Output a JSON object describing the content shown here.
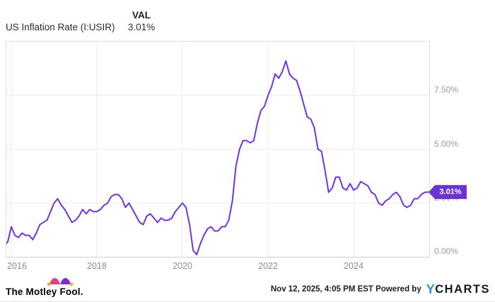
{
  "header": {
    "series_label": "US Inflation Rate (I:USIR)",
    "val_header": "VAL",
    "val_value": "3.01%"
  },
  "chart_data": {
    "type": "line",
    "title": "US Inflation Rate (I:USIR)",
    "series_name": "US Inflation Rate",
    "unit": "%",
    "frequency": "monthly",
    "x_start": "2015-11",
    "x_end": "2025-10",
    "x_tick_labels": [
      "2016",
      "2018",
      "2020",
      "2022",
      "2024"
    ],
    "y_ticks": [
      0,
      2.5,
      5,
      7.5
    ],
    "y_tick_labels": [
      "0.00%",
      "2.50%",
      "5.00%",
      "7.50%"
    ],
    "ylim": [
      0,
      10
    ],
    "grid": true,
    "legend_position": "none",
    "last_value_label": "3.01%",
    "values": [
      0.5,
      0.7,
      1.4,
      1.0,
      0.9,
      1.1,
      1.0,
      1.0,
      0.8,
      1.1,
      1.5,
      1.6,
      1.7,
      2.1,
      2.5,
      2.7,
      2.4,
      2.2,
      1.9,
      1.6,
      1.7,
      1.9,
      2.2,
      2.0,
      2.2,
      2.1,
      2.1,
      2.2,
      2.4,
      2.5,
      2.8,
      2.9,
      2.9,
      2.7,
      2.3,
      2.5,
      2.2,
      1.9,
      1.6,
      1.5,
      1.9,
      2.0,
      1.8,
      1.6,
      1.8,
      1.7,
      1.7,
      1.8,
      2.1,
      2.3,
      2.5,
      2.3,
      1.5,
      0.3,
      0.1,
      0.6,
      1.0,
      1.3,
      1.4,
      1.2,
      1.2,
      1.4,
      1.4,
      1.7,
      2.6,
      4.2,
      5.0,
      5.4,
      5.4,
      5.3,
      5.4,
      6.2,
      6.8,
      7.0,
      7.5,
      7.9,
      8.5,
      8.3,
      8.6,
      9.1,
      8.5,
      8.3,
      8.2,
      7.7,
      7.1,
      6.5,
      6.4,
      6.0,
      5.0,
      4.9,
      4.0,
      3.0,
      3.2,
      3.7,
      3.7,
      3.2,
      3.1,
      3.4,
      3.1,
      3.2,
      3.5,
      3.4,
      3.3,
      3.0,
      2.9,
      2.5,
      2.4,
      2.6,
      2.7,
      2.9,
      3.0,
      2.8,
      2.4,
      2.3,
      2.4,
      2.7,
      2.7,
      2.9,
      3.0,
      3.01
    ]
  },
  "colors": {
    "line": "#7334d8",
    "badge": "#6c35d0",
    "gridline": "#ececec",
    "ycharts_blue": "#2496e8"
  },
  "footer": {
    "brand": "The Motley Fool.",
    "timestamp": "Nov 12, 2025, 4:05 PM EST",
    "powered_by": "Powered by",
    "ycharts_y": "Y",
    "ycharts_rest": "CHARTS"
  }
}
